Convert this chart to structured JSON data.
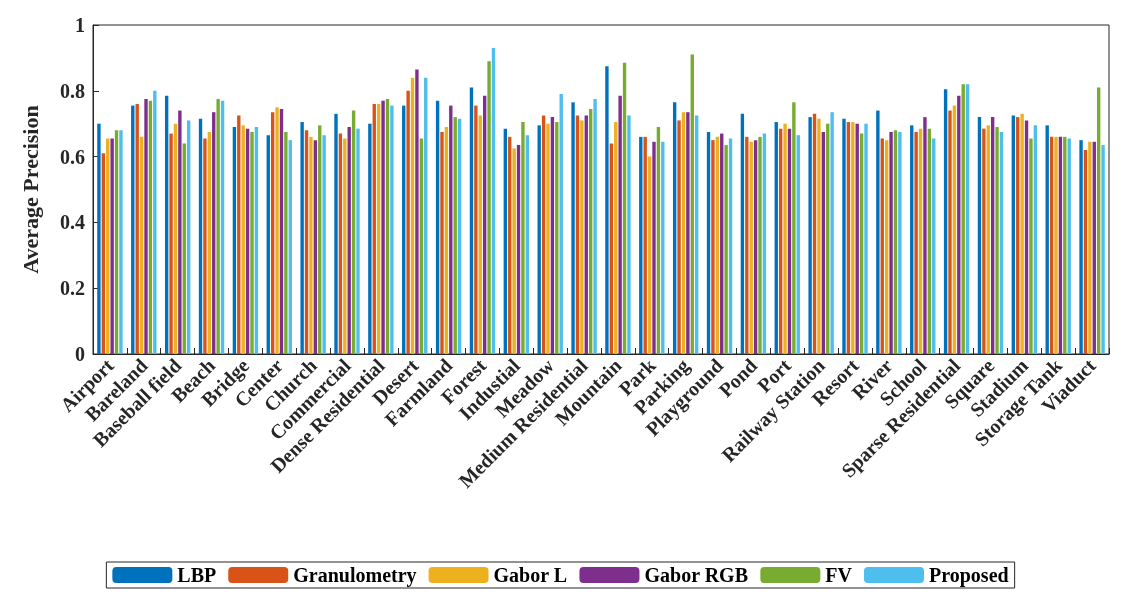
{
  "chart_data": {
    "type": "bar",
    "ylabel": "Average Precision",
    "categories": [
      "Airport",
      "Bareland",
      "Baseball field",
      "Beach",
      "Bridge",
      "Center",
      "Church",
      "Commercial",
      "Dense Residential",
      "Desert",
      "Farmland",
      "Forest",
      "Industial",
      "Meadow",
      "Medium Residential",
      "Mountain",
      "Park",
      "Parking",
      "Playground",
      "Pond",
      "Port",
      "Railway Station",
      "Resort",
      "River",
      "School",
      "Sparse Residential",
      "Square",
      "Stadium",
      "Storage Tank",
      "Viaduct"
    ],
    "series": [
      {
        "name": "LBP",
        "color": "#0072bd",
        "values": [
          0.7,
          0.755,
          0.785,
          0.715,
          0.69,
          0.665,
          0.705,
          0.73,
          0.7,
          0.755,
          0.77,
          0.81,
          0.685,
          0.695,
          0.765,
          0.875,
          0.66,
          0.765,
          0.675,
          0.73,
          0.705,
          0.72,
          0.715,
          0.74,
          0.695,
          0.805,
          0.72,
          0.725,
          0.695,
          0.65
        ]
      },
      {
        "name": "Granulometry",
        "color": "#d95319",
        "values": [
          0.61,
          0.76,
          0.67,
          0.655,
          0.725,
          0.735,
          0.68,
          0.67,
          0.76,
          0.8,
          0.675,
          0.755,
          0.66,
          0.725,
          0.725,
          0.64,
          0.66,
          0.71,
          0.65,
          0.66,
          0.685,
          0.73,
          0.705,
          0.655,
          0.675,
          0.74,
          0.685,
          0.72,
          0.66,
          0.62
        ]
      },
      {
        "name": "Gabor L",
        "color": "#edb120",
        "values": [
          0.655,
          0.66,
          0.7,
          0.675,
          0.695,
          0.75,
          0.66,
          0.655,
          0.76,
          0.84,
          0.69,
          0.725,
          0.625,
          0.7,
          0.71,
          0.705,
          0.6,
          0.735,
          0.66,
          0.645,
          0.7,
          0.715,
          0.705,
          0.65,
          0.685,
          0.755,
          0.695,
          0.73,
          0.66,
          0.645
        ]
      },
      {
        "name": "Gabor RGB",
        "color": "#7e2f8e",
        "values": [
          0.655,
          0.775,
          0.74,
          0.735,
          0.685,
          0.745,
          0.65,
          0.69,
          0.77,
          0.865,
          0.755,
          0.785,
          0.635,
          0.72,
          0.725,
          0.785,
          0.645,
          0.735,
          0.67,
          0.65,
          0.685,
          0.675,
          0.7,
          0.675,
          0.72,
          0.785,
          0.72,
          0.71,
          0.66,
          0.645
        ]
      },
      {
        "name": "FV",
        "color": "#77ac30",
        "values": [
          0.68,
          0.77,
          0.64,
          0.775,
          0.675,
          0.675,
          0.695,
          0.74,
          0.775,
          0.655,
          0.72,
          0.89,
          0.705,
          0.705,
          0.745,
          0.885,
          0.69,
          0.91,
          0.635,
          0.66,
          0.765,
          0.7,
          0.67,
          0.68,
          0.685,
          0.82,
          0.69,
          0.655,
          0.66,
          0.81
        ]
      },
      {
        "name": "Proposed",
        "color": "#4dbeee",
        "values": [
          0.68,
          0.8,
          0.71,
          0.77,
          0.69,
          0.65,
          0.665,
          0.685,
          0.755,
          0.84,
          0.715,
          0.93,
          0.665,
          0.79,
          0.775,
          0.725,
          0.645,
          0.725,
          0.655,
          0.67,
          0.665,
          0.735,
          0.7,
          0.675,
          0.655,
          0.82,
          0.675,
          0.695,
          0.655,
          0.635
        ]
      }
    ],
    "ylim": [
      0,
      1
    ],
    "yticks": [
      0,
      0.2,
      0.4,
      0.6,
      0.8,
      1
    ],
    "grid": false,
    "legend": "bottom"
  }
}
